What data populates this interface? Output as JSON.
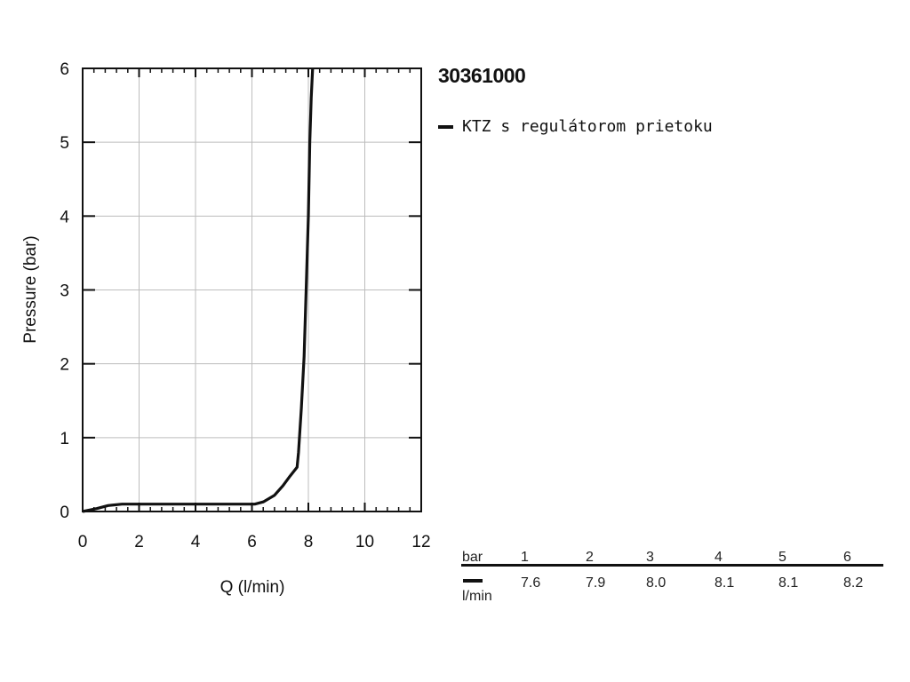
{
  "chart_data": {
    "type": "line",
    "title": "30361000",
    "xlabel": "Q (l/min)",
    "ylabel": "Pressure (bar)",
    "xlim": [
      0,
      12
    ],
    "ylim": [
      0,
      6
    ],
    "x_ticks": [
      "0",
      "2",
      "4",
      "6",
      "8",
      "10",
      "12"
    ],
    "y_ticks": [
      "0",
      "1",
      "2",
      "3",
      "4",
      "5",
      "6"
    ],
    "grid": true,
    "legend_position": "right",
    "series": [
      {
        "name": "KTZ s regulátorom prietoku",
        "color": "#111111",
        "points": [
          [
            0,
            0
          ],
          [
            0.5,
            0.04
          ],
          [
            0.9,
            0.08
          ],
          [
            1.4,
            0.1
          ],
          [
            3,
            0.1
          ],
          [
            6.1,
            0.1
          ],
          [
            6.4,
            0.13
          ],
          [
            6.8,
            0.22
          ],
          [
            7.1,
            0.35
          ],
          [
            7.35,
            0.48
          ],
          [
            7.6,
            0.6
          ],
          [
            7.65,
            0.8
          ],
          [
            7.75,
            1.4
          ],
          [
            7.85,
            2.1
          ],
          [
            7.92,
            3.0
          ],
          [
            8.0,
            4.0
          ],
          [
            8.05,
            5.0
          ],
          [
            8.1,
            5.6
          ],
          [
            8.15,
            6.0
          ]
        ]
      }
    ]
  },
  "value_table": {
    "row1_label": "bar",
    "row2_label": "l/min",
    "pressure": [
      "1",
      "2",
      "3",
      "4",
      "5",
      "6"
    ],
    "flow": [
      "7.6",
      "7.9",
      "8.0",
      "8.1",
      "8.1",
      "8.2"
    ]
  }
}
